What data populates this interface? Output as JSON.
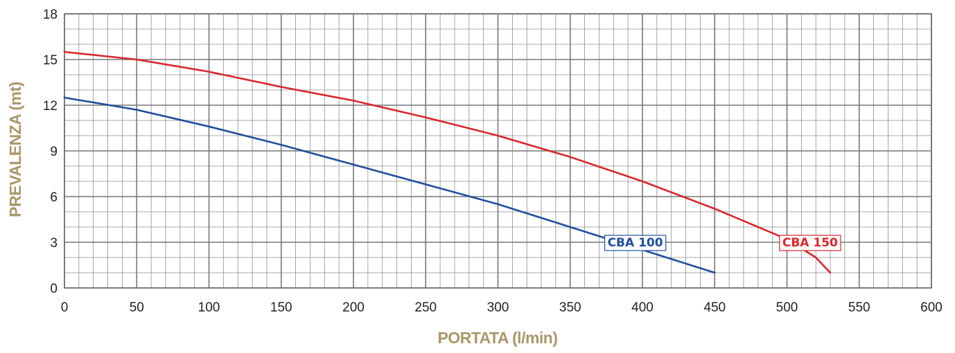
{
  "chart_data": {
    "type": "line",
    "xlabel": "PORTATA (l/min)",
    "ylabel": "PREVALENZA (mt)",
    "xlim": [
      0,
      600
    ],
    "ylim": [
      0,
      18
    ],
    "x_ticks": [
      0,
      50,
      100,
      150,
      200,
      250,
      300,
      350,
      400,
      450,
      500,
      550,
      600
    ],
    "y_ticks": [
      0,
      3,
      6,
      9,
      12,
      15,
      18
    ],
    "x_minor_step": 10,
    "y_minor_step": 1,
    "grid": true,
    "colors": {
      "grid": "#8c8c8c",
      "axis_title": "#a8976a"
    },
    "series": [
      {
        "name": "CBA 100",
        "color": "#1f4e9e",
        "label_at": [
          395,
          3.0
        ],
        "x": [
          0,
          50,
          100,
          150,
          200,
          250,
          300,
          350,
          400,
          450
        ],
        "y": [
          12.5,
          11.7,
          10.6,
          9.4,
          8.1,
          6.8,
          5.5,
          4.0,
          2.5,
          1.0
        ]
      },
      {
        "name": "CBA 150",
        "color": "#d9262b",
        "label_at": [
          516,
          3.0
        ],
        "x": [
          0,
          50,
          100,
          150,
          200,
          250,
          300,
          350,
          400,
          450,
          500,
          520,
          530
        ],
        "y": [
          15.5,
          15.0,
          14.2,
          13.2,
          12.3,
          11.2,
          10.0,
          8.6,
          7.0,
          5.2,
          3.2,
          2.0,
          1.0
        ]
      }
    ]
  }
}
